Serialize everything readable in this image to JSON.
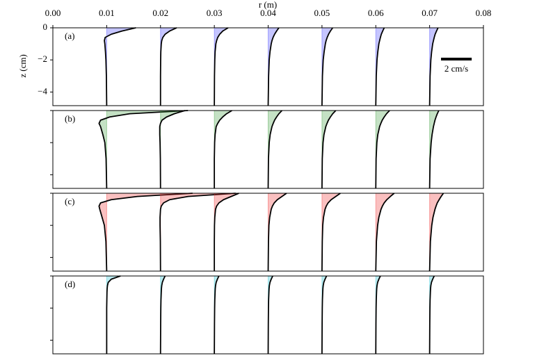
{
  "chart_data": {
    "type": "line",
    "xlabel": "r (m)",
    "ylabel": "z (cm)",
    "xlim": [
      0,
      0.08
    ],
    "xticks": [
      {
        "value": 0,
        "label": "0.00"
      },
      {
        "value": 0.01,
        "label": "0.01"
      },
      {
        "value": 0.02,
        "label": "0.02"
      },
      {
        "value": 0.03,
        "label": "0.03"
      },
      {
        "value": 0.04,
        "label": "0.04"
      },
      {
        "value": 0.05,
        "label": "0.05"
      },
      {
        "value": 0.06,
        "label": "0.06"
      },
      {
        "value": 0.07,
        "label": "0.07"
      },
      {
        "value": 0.08,
        "label": "0.08"
      }
    ],
    "ylim": [
      -4.85,
      0
    ],
    "yticks": [
      0,
      {
        "value": -2,
        "label": "−2"
      },
      {
        "value": -4,
        "label": "−4"
      }
    ],
    "positions": [
      0.01,
      0.02,
      0.03,
      0.04,
      0.05,
      0.06,
      0.07
    ],
    "z": [
      0,
      -0.2,
      -0.4,
      -0.6,
      -0.8,
      -1.0,
      -1.5,
      -2,
      -3,
      -4.85
    ],
    "scale_bar": {
      "value": 2,
      "label": "2 cm/s",
      "length": 0.0057
    },
    "panels": [
      {
        "label": "(a)",
        "color": "#4040ff",
        "profiles": [
          [
            1.9,
            1.0,
            0.3,
            -0.1,
            -0.15,
            -0.12,
            -0.08,
            -0.05,
            -0.02,
            0
          ],
          [
            1.05,
            0.6,
            0.3,
            0.15,
            0.08,
            0.05,
            0.02,
            0.01,
            0,
            0
          ],
          [
            0.9,
            0.55,
            0.35,
            0.22,
            0.15,
            0.1,
            0.05,
            0.03,
            0.01,
            0
          ],
          [
            0.7,
            0.55,
            0.42,
            0.32,
            0.25,
            0.2,
            0.12,
            0.07,
            0.03,
            0
          ],
          [
            0.7,
            0.55,
            0.43,
            0.34,
            0.27,
            0.22,
            0.14,
            0.08,
            0.03,
            0
          ],
          [
            0.55,
            0.45,
            0.36,
            0.3,
            0.25,
            0.2,
            0.13,
            0.08,
            0.03,
            0
          ],
          [
            0.55,
            0.45,
            0.36,
            0.3,
            0.25,
            0.2,
            0.13,
            0.08,
            0.03,
            0
          ]
        ]
      },
      {
        "label": "(b)",
        "color": "#3a9a3a",
        "profiles": [
          [
            5.3,
            1.5,
            0.2,
            -0.4,
            -0.5,
            -0.4,
            -0.25,
            -0.12,
            -0.04,
            0
          ],
          [
            1.6,
            0.9,
            0.4,
            0.1,
            0,
            -0.05,
            -0.05,
            -0.03,
            -0.01,
            0
          ],
          [
            1.15,
            0.8,
            0.55,
            0.35,
            0.22,
            0.12,
            0.05,
            0.02,
            0,
            0
          ],
          [
            0.9,
            0.7,
            0.55,
            0.42,
            0.33,
            0.25,
            0.13,
            0.07,
            0.02,
            0
          ],
          [
            0.9,
            0.7,
            0.55,
            0.42,
            0.33,
            0.25,
            0.13,
            0.07,
            0.02,
            0
          ],
          [
            0.9,
            0.7,
            0.55,
            0.42,
            0.33,
            0.25,
            0.13,
            0.07,
            0.02,
            0
          ],
          [
            0.6,
            0.5,
            0.42,
            0.35,
            0.3,
            0.25,
            0.16,
            0.1,
            0.03,
            0
          ]
        ]
      },
      {
        "label": "(c)",
        "color": "#f03030",
        "profiles": [
          [
            5.6,
            2,
            0.3,
            -0.4,
            -0.5,
            -0.45,
            -0.3,
            -0.15,
            -0.05,
            0
          ],
          [
            4.9,
            1.8,
            0.6,
            0.2,
            0.05,
            0,
            -0.03,
            -0.03,
            -0.01,
            0
          ],
          [
            1.6,
            1.1,
            0.6,
            0.3,
            0.15,
            0.08,
            0.03,
            0.01,
            0,
            0
          ],
          [
            1.2,
            0.9,
            0.6,
            0.4,
            0.28,
            0.2,
            0.1,
            0.05,
            0.02,
            0
          ],
          [
            1.2,
            0.9,
            0.6,
            0.4,
            0.28,
            0.2,
            0.1,
            0.05,
            0.02,
            0
          ],
          [
            1.2,
            0.95,
            0.72,
            0.55,
            0.43,
            0.34,
            0.2,
            0.12,
            0.04,
            0
          ],
          [
            0.9,
            0.75,
            0.62,
            0.5,
            0.42,
            0.35,
            0.22,
            0.14,
            0.05,
            0
          ]
        ]
      },
      {
        "label": "(d)",
        "color": "#20c0d0",
        "profiles": [
          [
            0.9,
            0.3,
            0.1,
            0.05,
            0.03,
            0.02,
            0.01,
            0,
            0,
            0
          ],
          [
            0.3,
            0.2,
            0.12,
            0.08,
            0.06,
            0.05,
            0.03,
            0.02,
            0.01,
            0
          ],
          [
            0.3,
            0.2,
            0.12,
            0.08,
            0.06,
            0.05,
            0.03,
            0.02,
            0.01,
            0
          ],
          [
            0.3,
            0.2,
            0.12,
            0.08,
            0.06,
            0.05,
            0.03,
            0.02,
            0.01,
            0
          ],
          [
            0.3,
            0.2,
            0.12,
            0.08,
            0.06,
            0.05,
            0.03,
            0.02,
            0.01,
            0
          ],
          [
            0.3,
            0.2,
            0.12,
            0.08,
            0.06,
            0.05,
            0.03,
            0.02,
            0.01,
            0
          ],
          [
            0.3,
            0.2,
            0.12,
            0.08,
            0.06,
            0.05,
            0.03,
            0.02,
            0.01,
            0
          ]
        ]
      }
    ]
  }
}
